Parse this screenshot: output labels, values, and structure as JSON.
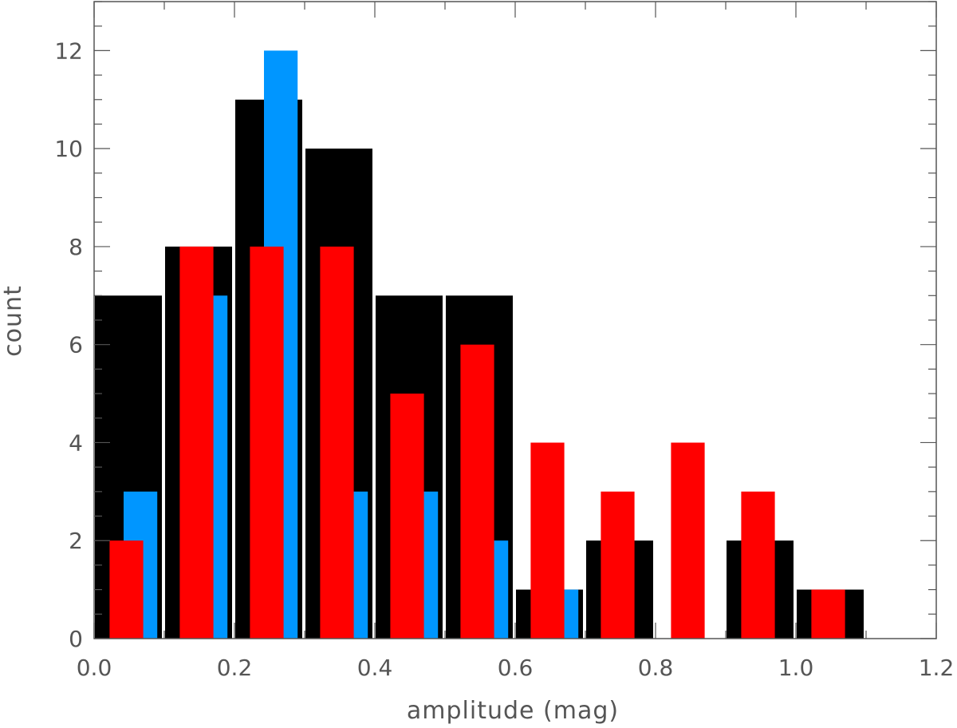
{
  "chart_data": {
    "type": "bar",
    "xlabel": "amplitude (mag)",
    "ylabel": "count",
    "xlim": [
      0.0,
      1.2
    ],
    "ylim": [
      0,
      13
    ],
    "x_ticks": [
      "0.0",
      "0.2",
      "0.4",
      "0.6",
      "0.8",
      "1.0",
      "1.2"
    ],
    "y_ticks": [
      "0",
      "2",
      "4",
      "6",
      "8",
      "10",
      "12"
    ],
    "grid": false,
    "legend": "none",
    "bin_width": 0.1,
    "series": [
      {
        "color": "#000000",
        "bins": [
          [
            0.0,
            0.1
          ],
          [
            0.1,
            0.2
          ],
          [
            0.2,
            0.3
          ],
          [
            0.3,
            0.4
          ],
          [
            0.4,
            0.5
          ],
          [
            0.5,
            0.6
          ],
          [
            0.6,
            0.7
          ],
          [
            0.7,
            0.8
          ],
          [
            0.8,
            0.9
          ],
          [
            0.9,
            1.0
          ],
          [
            1.0,
            1.1
          ]
        ],
        "values": [
          7,
          8,
          11,
          10,
          7,
          7,
          1,
          2,
          0,
          2,
          1
        ]
      },
      {
        "color": "#0096FF",
        "bins": [
          [
            0.0,
            0.1
          ],
          [
            0.1,
            0.2
          ],
          [
            0.2,
            0.3
          ],
          [
            0.3,
            0.4
          ],
          [
            0.4,
            0.5
          ],
          [
            0.5,
            0.6
          ],
          [
            0.6,
            0.7
          ]
        ],
        "values": [
          3,
          7,
          12,
          3,
          3,
          2,
          1
        ]
      },
      {
        "color": "#FF0000",
        "bins": [
          [
            0.0,
            0.1
          ],
          [
            0.1,
            0.2
          ],
          [
            0.2,
            0.3
          ],
          [
            0.3,
            0.4
          ],
          [
            0.4,
            0.5
          ],
          [
            0.5,
            0.6
          ],
          [
            0.6,
            0.7
          ],
          [
            0.7,
            0.8
          ],
          [
            0.8,
            0.9
          ],
          [
            0.9,
            1.0
          ],
          [
            1.0,
            1.1
          ]
        ],
        "values": [
          2,
          8,
          8,
          8,
          5,
          6,
          4,
          3,
          4,
          3,
          1
        ]
      }
    ]
  }
}
